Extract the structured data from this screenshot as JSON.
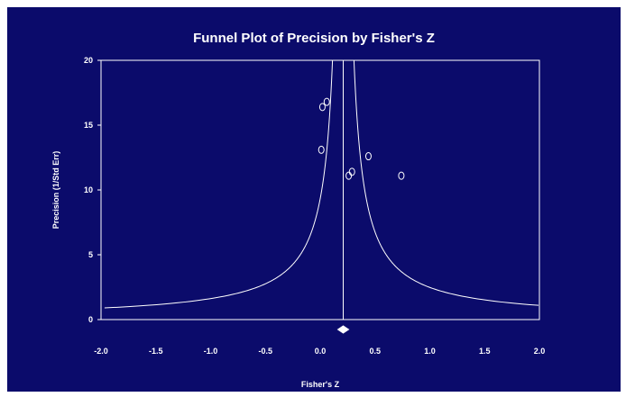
{
  "chart_data": {
    "type": "scatter",
    "title": "Funnel Plot of Precision by Fisher's Z",
    "xlabel": "Fisher's Z",
    "ylabel": "Precision (1/Std Err)",
    "xlim": [
      -2.0,
      2.0
    ],
    "ylim": [
      0,
      20
    ],
    "x_ticks": [
      "-2.0",
      "-1.5",
      "-1.0",
      "-0.5",
      "0.0",
      "0.5",
      "1.0",
      "1.5",
      "2.0"
    ],
    "y_ticks": [
      "0",
      "5",
      "10",
      "15",
      "20"
    ],
    "grid": false,
    "legend": "none",
    "points": [
      {
        "x": 0.02,
        "y": 16.4
      },
      {
        "x": 0.06,
        "y": 16.8
      },
      {
        "x": 0.01,
        "y": 13.1
      },
      {
        "x": 0.26,
        "y": 11.1
      },
      {
        "x": 0.29,
        "y": 11.4
      },
      {
        "x": 0.44,
        "y": 12.6
      },
      {
        "x": 0.74,
        "y": 11.1
      }
    ],
    "combined_effect": 0.21,
    "funnel_z": 1.96,
    "colors": {
      "background": "#0b0b6b",
      "foreground": "#ffffff"
    }
  }
}
